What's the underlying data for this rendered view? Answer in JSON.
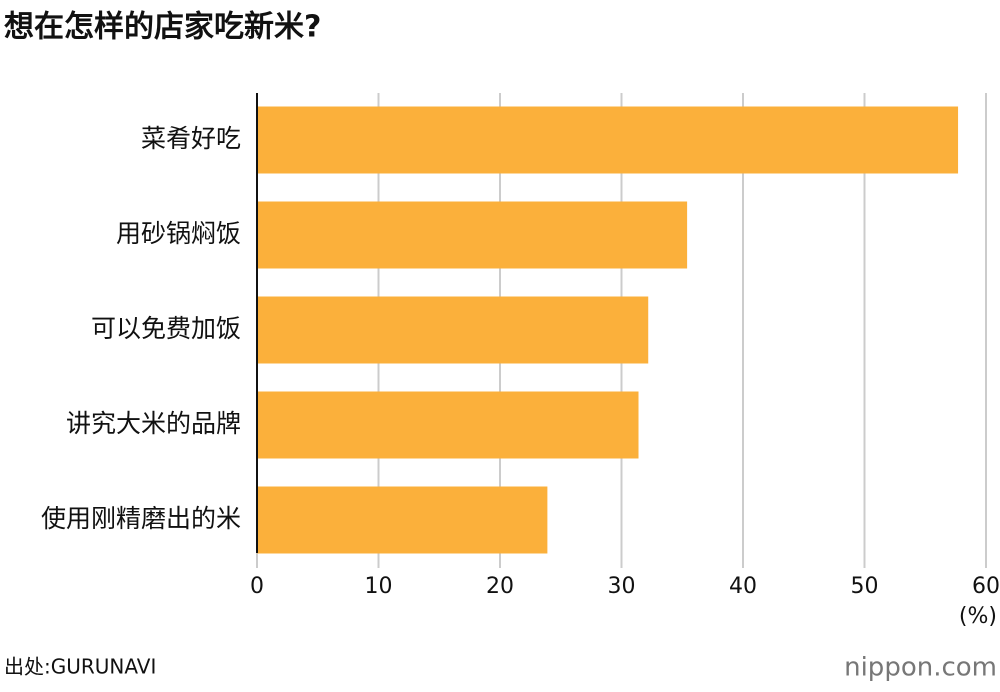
{
  "chart_data": {
    "type": "bar",
    "orientation": "horizontal",
    "title": "想在怎样的店家吃新米?",
    "categories": [
      "菜肴好吃",
      "用砂锅焖饭",
      "可以免费加饭",
      "讲究大米的品牌",
      "使用刚精磨出的米"
    ],
    "values": [
      57.7,
      35.4,
      32.2,
      31.4,
      23.9
    ],
    "color": "#fbb03b",
    "xlim": [
      0,
      60
    ],
    "xticks": [
      0,
      10,
      20,
      30,
      40,
      50,
      60
    ],
    "x_label": "(%)",
    "grid": true,
    "source": "出处:GURUNAVI",
    "logo": "nippon.com"
  }
}
